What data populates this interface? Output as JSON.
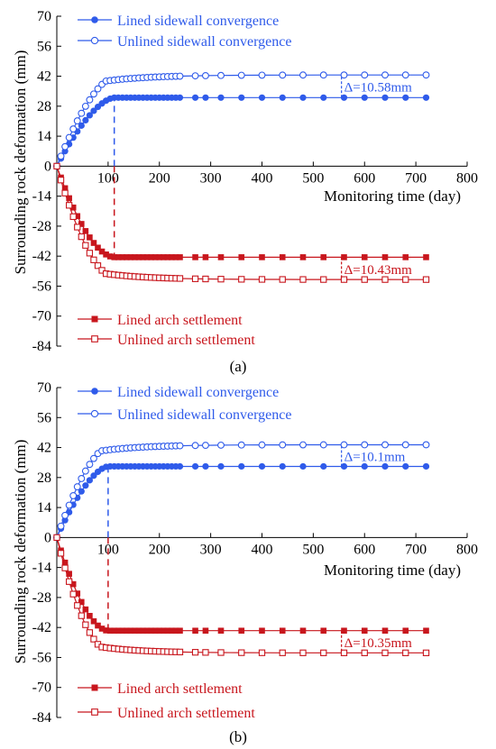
{
  "chart_data": [
    {
      "type": "line",
      "panel_label": "(a)",
      "ylabel": "Surrounding rock deformation (mm)",
      "xlabel": "Monitoring time (day)",
      "ylim": [
        -84,
        70
      ],
      "xlim": [
        0,
        800
      ],
      "yticks": [
        70,
        56,
        42,
        28,
        14,
        0,
        -14,
        -28,
        -42,
        -56,
        -70,
        -84
      ],
      "xticks": [
        0,
        100,
        200,
        300,
        400,
        500,
        600,
        700,
        800
      ],
      "grid": false,
      "colors": {
        "blue": "#2f5bea",
        "red": "#c8161d"
      },
      "series": [
        {
          "name": "Lined sidewall convergence",
          "color": "#2f5bea",
          "marker": "filled-circle",
          "saturation": 32,
          "t_sat": 112,
          "shape": 1.6
        },
        {
          "name": "Unlined sidewall convergence",
          "color": "#2f5bea",
          "marker": "open-circle",
          "saturation": 42.58,
          "t_sat": 112,
          "tau": 90,
          "shape": 1.6
        },
        {
          "name": "Lined arch settlement",
          "color": "#c8161d",
          "marker": "filled-square",
          "saturation": -42.5,
          "t_sat": 112,
          "shape": 1.8
        },
        {
          "name": "Unlined arch settlement",
          "color": "#c8161d",
          "marker": "open-square",
          "saturation": -52.93,
          "t_sat": 112,
          "tau": 85,
          "shape": 1.8
        }
      ],
      "vlines": [
        {
          "x": 112,
          "from": 0,
          "to": 32,
          "color": "#2f5bea"
        },
        {
          "x": 112,
          "from": 0,
          "to": -42.5,
          "color": "#c8161d"
        }
      ],
      "annotations": [
        {
          "text": "Δ=10.58mm",
          "x": 555,
          "y_from": 32,
          "y_to": 42.58,
          "color": "#2f5bea"
        },
        {
          "text": "Δ=10.43mm",
          "x": 555,
          "y_from": -42.5,
          "y_to": -52.93,
          "color": "#c8161d"
        }
      ]
    },
    {
      "type": "line",
      "panel_label": "(b)",
      "ylabel": "Surrounding rock deformation (mm)",
      "xlabel": "Monitoring time (day)",
      "ylim": [
        -84,
        70
      ],
      "xlim": [
        0,
        800
      ],
      "yticks": [
        70,
        56,
        42,
        28,
        14,
        0,
        -14,
        -28,
        -42,
        -56,
        -70,
        -84
      ],
      "xticks": [
        0,
        100,
        200,
        300,
        400,
        500,
        600,
        700,
        800
      ],
      "grid": false,
      "colors": {
        "blue": "#2f5bea",
        "red": "#c8161d"
      },
      "series": [
        {
          "name": "Lined sidewall convergence",
          "color": "#2f5bea",
          "marker": "filled-circle",
          "saturation": 33.2,
          "t_sat": 100,
          "shape": 1.6
        },
        {
          "name": "Unlined sidewall convergence",
          "color": "#2f5bea",
          "marker": "open-circle",
          "saturation": 43.3,
          "t_sat": 100,
          "tau": 85,
          "shape": 1.6
        },
        {
          "name": "Lined arch settlement",
          "color": "#c8161d",
          "marker": "filled-square",
          "saturation": -43.5,
          "t_sat": 100,
          "shape": 1.8
        },
        {
          "name": "Unlined arch settlement",
          "color": "#c8161d",
          "marker": "open-square",
          "saturation": -53.85,
          "t_sat": 100,
          "tau": 80,
          "shape": 1.8
        }
      ],
      "vlines": [
        {
          "x": 100,
          "from": 0,
          "to": 33.2,
          "color": "#2f5bea"
        },
        {
          "x": 100,
          "from": 0,
          "to": -43.5,
          "color": "#c8161d"
        }
      ],
      "annotations": [
        {
          "text": "Δ=10.1mm",
          "x": 555,
          "y_from": 33.2,
          "y_to": 43.3,
          "color": "#2f5bea"
        },
        {
          "text": "Δ=10.35mm",
          "x": 555,
          "y_from": -43.5,
          "y_to": -53.85,
          "color": "#c8161d"
        }
      ]
    }
  ]
}
